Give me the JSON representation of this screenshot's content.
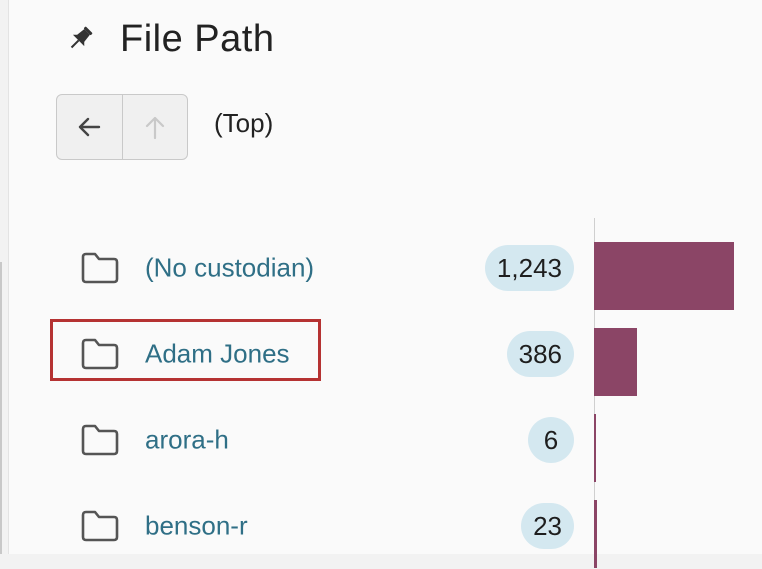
{
  "header": {
    "title": "File Path",
    "icon": "pin-icon"
  },
  "navigation": {
    "back_icon": "arrow-left-icon",
    "up_icon": "arrow-up-icon",
    "current_location": "(Top)"
  },
  "colors": {
    "bar": "#8b4566",
    "link": "#2f6f86",
    "count_badge": "#d4e8f0",
    "highlight": "#b53232"
  },
  "chart_data": {
    "type": "bar",
    "categories": [
      "(No custodian)",
      "Adam Jones",
      "arora-h",
      "benson-r"
    ],
    "values": [
      1243,
      386,
      6,
      23
    ],
    "xlim": [
      0,
      1243
    ]
  },
  "rows": [
    {
      "name": "(No custodian)",
      "count": "1,243",
      "value": 1243,
      "icon": "folder-icon",
      "highlighted": false
    },
    {
      "name": "Adam Jones",
      "count": "386",
      "value": 386,
      "icon": "folder-icon",
      "highlighted": true
    },
    {
      "name": "arora-h",
      "count": "6",
      "value": 6,
      "icon": "folder-icon",
      "highlighted": false
    },
    {
      "name": "benson-r",
      "count": "23",
      "value": 23,
      "icon": "folder-icon",
      "highlighted": false
    }
  ]
}
